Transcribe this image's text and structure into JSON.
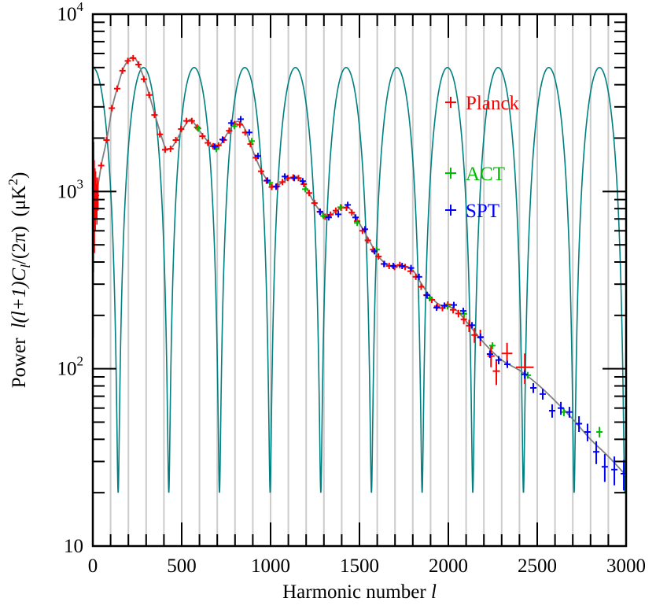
{
  "chart_data": {
    "type": "scatter",
    "xlabel": "Harmonic number l",
    "ylabel": "Power  l(l+1)C_l/(2π)  (μK²)",
    "ylabel_parts": {
      "prefix": "Power",
      "formula": "l(l+1)C",
      "sub": "l",
      "formula_end": "/(2π)",
      "unit_open": "(μK",
      "unit_exp": "2",
      "unit_close": ")"
    },
    "xlabel_parts": {
      "text": "Harmonic number",
      "var": "l"
    },
    "xlim": [
      0,
      3000
    ],
    "ylim": [
      10,
      10000
    ],
    "yscale": "log",
    "x_ticks": [
      0,
      500,
      1000,
      1500,
      2000,
      2500,
      3000
    ],
    "x_tick_labels": [
      "0",
      "500",
      "1000",
      "1500",
      "2000",
      "2500",
      "3000"
    ],
    "y_ticks": [
      10,
      100,
      1000,
      10000
    ],
    "y_tick_labels": [
      {
        "base": "10",
        "exp": ""
      },
      {
        "base": "10",
        "exp": "2"
      },
      {
        "base": "10",
        "exp": "3"
      },
      {
        "base": "10",
        "exp": "4"
      }
    ],
    "grid": "vertical lines every 100 in l",
    "legend_position": "upper-right inside",
    "colors": {
      "Planck": "#ff0000",
      "ACT": "#00bb00",
      "SPT": "#0000ff",
      "theory": "#808080",
      "oscillation": "#008080",
      "grid": "#cccccc"
    },
    "oscillation": {
      "min": 20,
      "max": 5000,
      "period": 285,
      "form": "min + (max-min)*cos^2(pi*l/period)"
    },
    "theory_curve": [
      [
        2,
        1000
      ],
      [
        10,
        900
      ],
      [
        30,
        1100
      ],
      [
        50,
        1450
      ],
      [
        80,
        2000
      ],
      [
        110,
        3000
      ],
      [
        140,
        3900
      ],
      [
        170,
        4900
      ],
      [
        200,
        5500
      ],
      [
        220,
        5700
      ],
      [
        250,
        5400
      ],
      [
        300,
        4000
      ],
      [
        350,
        2700
      ],
      [
        400,
        1850
      ],
      [
        420,
        1730
      ],
      [
        450,
        1800
      ],
      [
        500,
        2200
      ],
      [
        540,
        2520
      ],
      [
        560,
        2500
      ],
      [
        600,
        2200
      ],
      [
        650,
        1900
      ],
      [
        690,
        1780
      ],
      [
        720,
        1850
      ],
      [
        760,
        2150
      ],
      [
        800,
        2450
      ],
      [
        830,
        2450
      ],
      [
        860,
        2200
      ],
      [
        900,
        1700
      ],
      [
        950,
        1300
      ],
      [
        1000,
        1100
      ],
      [
        1030,
        1070
      ],
      [
        1080,
        1150
      ],
      [
        1130,
        1210
      ],
      [
        1160,
        1190
      ],
      [
        1200,
        1050
      ],
      [
        1250,
        850
      ],
      [
        1300,
        735
      ],
      [
        1340,
        740
      ],
      [
        1380,
        790
      ],
      [
        1420,
        815
      ],
      [
        1450,
        790
      ],
      [
        1500,
        660
      ],
      [
        1550,
        540
      ],
      [
        1600,
        440
      ],
      [
        1650,
        390
      ],
      [
        1700,
        380
      ],
      [
        1750,
        380
      ],
      [
        1800,
        360
      ],
      [
        1850,
        300
      ],
      [
        1900,
        255
      ],
      [
        1950,
        230
      ],
      [
        2000,
        225
      ],
      [
        2050,
        212
      ],
      [
        2100,
        185
      ],
      [
        2200,
        140
      ],
      [
        2300,
        112
      ],
      [
        2400,
        98
      ],
      [
        2500,
        82
      ],
      [
        2600,
        66
      ],
      [
        2700,
        52
      ],
      [
        2800,
        40
      ],
      [
        2900,
        32
      ],
      [
        3000,
        25
      ]
    ],
    "series": [
      {
        "name": "Planck",
        "low_l_points": [
          [
            2,
            1000,
            150,
            2500
          ],
          [
            3,
            900,
            300,
            2000
          ],
          [
            4,
            800,
            350,
            1600
          ],
          [
            5,
            1100,
            500,
            1900
          ],
          [
            6,
            900,
            450,
            1500
          ],
          [
            7,
            800,
            450,
            1300
          ],
          [
            8,
            1000,
            600,
            1500
          ],
          [
            9,
            750,
            450,
            1100
          ],
          [
            10,
            900,
            600,
            1250
          ],
          [
            12,
            1000,
            700,
            1350
          ],
          [
            14,
            850,
            600,
            1100
          ],
          [
            16,
            1050,
            780,
            1300
          ],
          [
            18,
            950,
            700,
            1200
          ],
          [
            20,
            900,
            700,
            1100
          ],
          [
            23,
            850,
            650,
            1050
          ],
          [
            26,
            1000,
            800,
            1200
          ],
          [
            29,
            950,
            780,
            1120
          ]
        ],
        "points": [
          [
            47,
            1400,
            40,
            15
          ],
          [
            77,
            1950,
            50,
            15
          ],
          [
            107,
            2950,
            60,
            15
          ],
          [
            137,
            3800,
            70,
            15
          ],
          [
            167,
            4800,
            80,
            15
          ],
          [
            197,
            5450,
            90,
            15
          ],
          [
            227,
            5650,
            90,
            15
          ],
          [
            257,
            5200,
            80,
            15
          ],
          [
            287,
            4300,
            70,
            15
          ],
          [
            317,
            3500,
            60,
            15
          ],
          [
            347,
            2700,
            50,
            15
          ],
          [
            377,
            2100,
            40,
            15
          ],
          [
            407,
            1720,
            35,
            15
          ],
          [
            437,
            1740,
            35,
            15
          ],
          [
            467,
            1950,
            35,
            15
          ],
          [
            497,
            2250,
            40,
            15
          ],
          [
            527,
            2500,
            40,
            15
          ],
          [
            557,
            2500,
            40,
            15
          ],
          [
            587,
            2300,
            40,
            15
          ],
          [
            617,
            2050,
            35,
            15
          ],
          [
            647,
            1880,
            35,
            15
          ],
          [
            677,
            1800,
            35,
            15
          ],
          [
            707,
            1820,
            35,
            15
          ],
          [
            737,
            1950,
            35,
            15
          ],
          [
            767,
            2200,
            40,
            15
          ],
          [
            797,
            2400,
            40,
            15
          ],
          [
            827,
            2380,
            40,
            15
          ],
          [
            857,
            2150,
            40,
            15
          ],
          [
            887,
            1850,
            35,
            15
          ],
          [
            917,
            1550,
            30,
            15
          ],
          [
            947,
            1300,
            25,
            15
          ],
          [
            977,
            1150,
            25,
            15
          ],
          [
            1007,
            1060,
            20,
            15
          ],
          [
            1037,
            1070,
            20,
            15
          ],
          [
            1067,
            1130,
            20,
            15
          ],
          [
            1097,
            1190,
            20,
            15
          ],
          [
            1127,
            1200,
            20,
            15
          ],
          [
            1157,
            1190,
            20,
            15
          ],
          [
            1187,
            1100,
            20,
            15
          ],
          [
            1217,
            980,
            20,
            15
          ],
          [
            1247,
            860,
            18,
            15
          ],
          [
            1277,
            770,
            16,
            15
          ],
          [
            1307,
            720,
            15,
            15
          ],
          [
            1337,
            740,
            15,
            15
          ],
          [
            1367,
            780,
            15,
            15
          ],
          [
            1397,
            810,
            16,
            15
          ],
          [
            1427,
            810,
            16,
            15
          ],
          [
            1457,
            760,
            15,
            15
          ],
          [
            1487,
            680,
            14,
            15
          ],
          [
            1517,
            600,
            12,
            15
          ],
          [
            1547,
            530,
            11,
            15
          ],
          [
            1577,
            470,
            10,
            15
          ],
          [
            1607,
            430,
            10,
            15
          ],
          [
            1637,
            390,
            9,
            15
          ],
          [
            1667,
            380,
            9,
            15
          ],
          [
            1697,
            375,
            9,
            15
          ],
          [
            1727,
            385,
            9,
            15
          ],
          [
            1757,
            375,
            9,
            15
          ],
          [
            1787,
            355,
            9,
            15
          ],
          [
            1817,
            330,
            9,
            15
          ],
          [
            1847,
            290,
            9,
            15
          ],
          [
            1877,
            260,
            9,
            15
          ],
          [
            1907,
            245,
            9,
            15
          ],
          [
            1937,
            225,
            9,
            15
          ],
          [
            1967,
            220,
            9,
            15
          ],
          [
            1997,
            230,
            10,
            15
          ],
          [
            2027,
            215,
            10,
            15
          ],
          [
            2057,
            205,
            10,
            15
          ],
          [
            2087,
            190,
            12,
            15
          ],
          [
            2117,
            175,
            14,
            15
          ],
          [
            2147,
            155,
            15,
            15
          ],
          [
            2180,
            150,
            16,
            15
          ],
          [
            2240,
            118,
            16,
            20
          ],
          [
            2270,
            97,
            16,
            20
          ],
          [
            2330,
            122,
            18,
            30
          ],
          [
            2430,
            102,
            20,
            50
          ]
        ]
      },
      {
        "name": "ACT",
        "points": [
          [
            593,
            2264,
            60,
            8
          ],
          [
            695,
            1735,
            50,
            8
          ],
          [
            796,
            2335,
            60,
            8
          ],
          [
            894,
            1923,
            50,
            8
          ],
          [
            996,
            1119,
            30,
            8
          ],
          [
            1195,
            1031,
            30,
            8
          ],
          [
            1297,
            728,
            20,
            8
          ],
          [
            1394,
            815,
            20,
            8
          ],
          [
            1487,
            665,
            18,
            8
          ],
          [
            1597,
            470,
            14,
            8
          ],
          [
            1895,
            250,
            8,
            8
          ],
          [
            1995,
            225,
            8,
            8
          ],
          [
            2088,
            204,
            8,
            8
          ],
          [
            2248,
            135,
            6,
            8
          ],
          [
            2447,
            92,
            4,
            8
          ],
          [
            2650,
            57,
            3,
            8
          ],
          [
            2850,
            44,
            3,
            8
          ]
        ]
      },
      {
        "name": "SPT",
        "points": [
          [
            686,
            1791,
            50,
            8
          ],
          [
            730,
            1963,
            50,
            8
          ],
          [
            779,
            2432,
            60,
            8
          ],
          [
            832,
            2558,
            60,
            8
          ],
          [
            880,
            2152,
            50,
            8
          ],
          [
            929,
            1585,
            40,
            8
          ],
          [
            982,
            1153,
            30,
            8
          ],
          [
            1031,
            1064,
            30,
            8
          ],
          [
            1080,
            1214,
            30,
            8
          ],
          [
            1133,
            1190,
            30,
            8
          ],
          [
            1181,
            1143,
            30,
            8
          ],
          [
            1279,
            767,
            20,
            8
          ],
          [
            1327,
            714,
            20,
            8
          ],
          [
            1381,
            743,
            20,
            8
          ],
          [
            1434,
            840,
            20,
            8
          ],
          [
            1478,
            714,
            20,
            8
          ],
          [
            1531,
            612,
            16,
            8
          ],
          [
            1584,
            460,
            14,
            8
          ],
          [
            1640,
            390,
            10,
            8
          ],
          [
            1690,
            380,
            10,
            8
          ],
          [
            1740,
            380,
            10,
            8
          ],
          [
            1790,
            370,
            10,
            8
          ],
          [
            1835,
            330,
            10,
            8
          ],
          [
            1880,
            260,
            9,
            8
          ],
          [
            1934,
            221,
            8,
            8
          ],
          [
            1978,
            227,
            8,
            8
          ],
          [
            2031,
            229,
            8,
            8
          ],
          [
            2084,
            212,
            8,
            8
          ],
          [
            2133,
            176,
            7,
            8
          ],
          [
            2181,
            151,
            7,
            8
          ],
          [
            2234,
            121,
            6,
            8
          ],
          [
            2283,
            112,
            6,
            8
          ],
          [
            2332,
            106,
            5,
            8
          ],
          [
            2429,
            93,
            5,
            8
          ],
          [
            2478,
            78,
            5,
            8
          ],
          [
            2531,
            72,
            5,
            8
          ],
          [
            2584,
            58,
            5,
            8
          ],
          [
            2633,
            60,
            5,
            8
          ],
          [
            2681,
            57,
            4,
            8
          ],
          [
            2735,
            49,
            5,
            8
          ],
          [
            2783,
            44,
            5,
            8
          ],
          [
            2832,
            34,
            5,
            8
          ],
          [
            2880,
            28,
            5,
            8
          ],
          [
            2934,
            27,
            5,
            8
          ],
          [
            2987,
            25.6,
            5,
            8
          ]
        ]
      }
    ],
    "legend": [
      {
        "label": "Planck",
        "color": "#ff0000"
      },
      {
        "label": "ACT",
        "color": "#00bb00"
      },
      {
        "label": "SPT",
        "color": "#0000ff"
      }
    ]
  }
}
